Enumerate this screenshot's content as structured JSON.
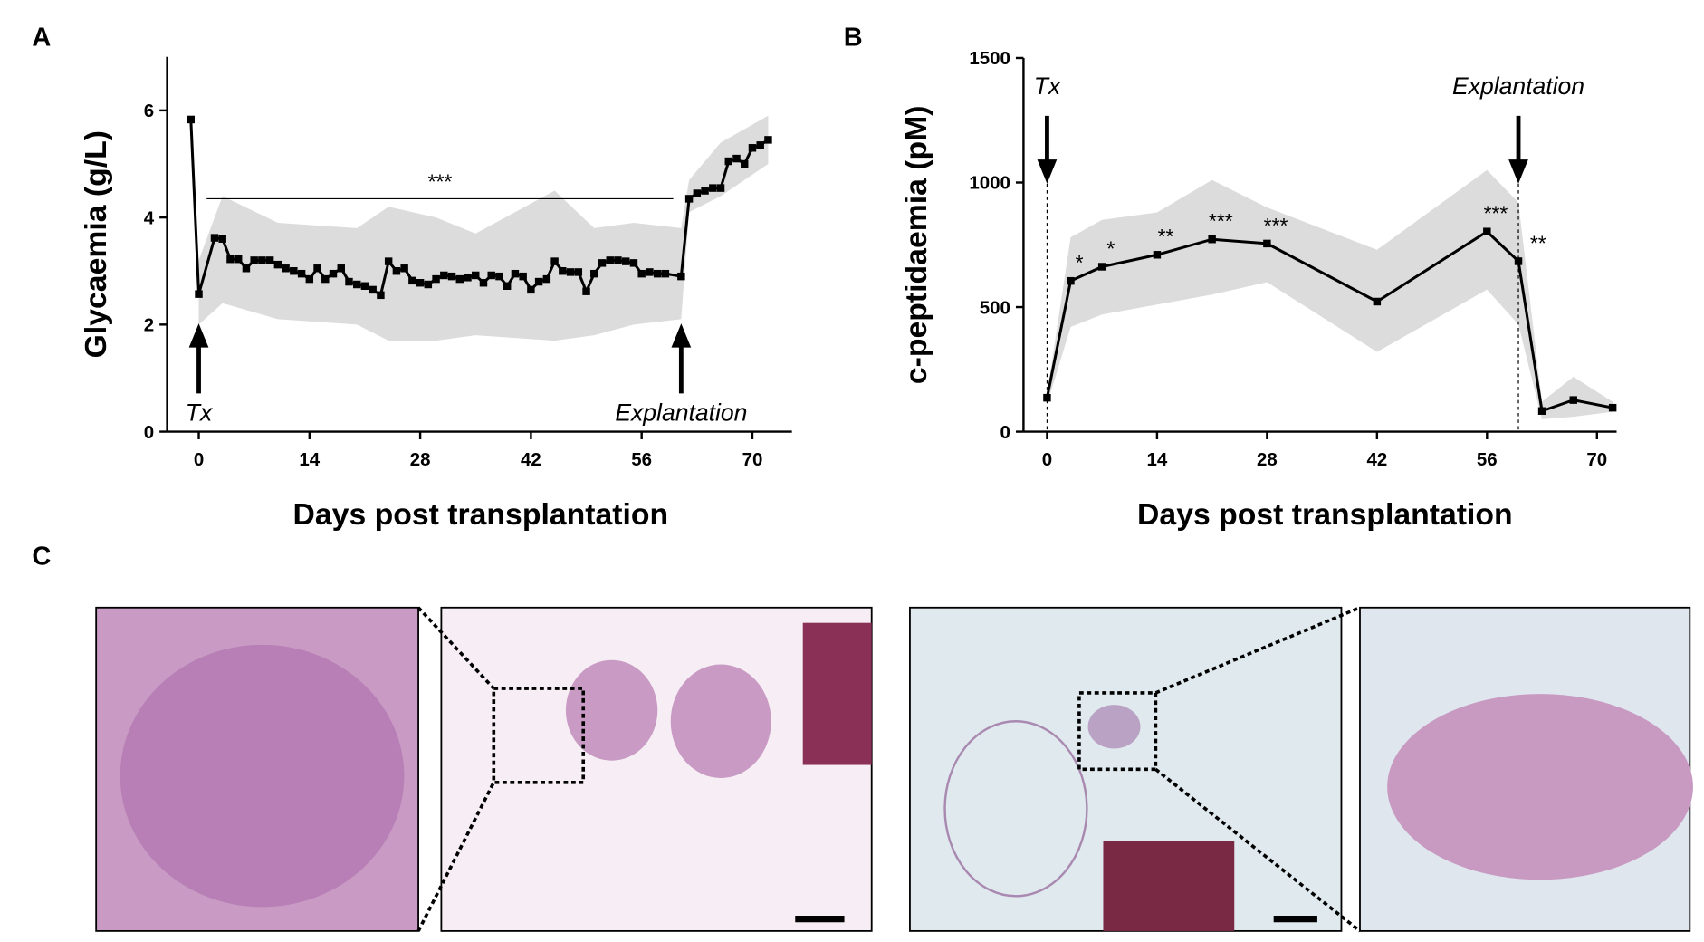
{
  "panels": [
    "A",
    "B",
    "C"
  ],
  "chart_data": [
    {
      "type": "line",
      "ylabel": "Glycaemia (g/L)",
      "xlabel": "Days post transplantation",
      "x": [
        -1,
        0,
        2,
        3,
        4,
        5,
        6,
        7,
        8,
        9,
        10,
        11,
        12,
        13,
        14,
        15,
        16,
        17,
        18,
        19,
        20,
        21,
        22,
        23,
        24,
        25,
        26,
        27,
        28,
        29,
        30,
        31,
        32,
        33,
        34,
        35,
        36,
        37,
        38,
        39,
        40,
        41,
        42,
        43,
        44,
        45,
        46,
        47,
        48,
        49,
        50,
        51,
        52,
        53,
        54,
        55,
        56,
        57,
        58,
        59,
        61,
        62,
        63,
        64,
        65,
        66,
        67,
        68,
        69,
        70,
        71,
        72
      ],
      "series": [
        {
          "color": "#000000",
          "values": [
            5.83,
            2.57,
            3.62,
            3.6,
            3.22,
            3.22,
            3.05,
            3.2,
            3.2,
            3.2,
            3.12,
            3.05,
            3.0,
            2.95,
            2.85,
            3.05,
            2.85,
            2.95,
            3.05,
            2.8,
            2.75,
            2.72,
            2.65,
            2.55,
            3.18,
            3.0,
            3.05,
            2.82,
            2.78,
            2.75,
            2.85,
            2.92,
            2.9,
            2.85,
            2.88,
            2.92,
            2.78,
            2.92,
            2.9,
            2.72,
            2.95,
            2.9,
            2.65,
            2.8,
            2.85,
            3.18,
            3.0,
            2.98,
            2.98,
            2.62,
            2.95,
            3.15,
            3.2,
            3.2,
            3.18,
            3.15,
            2.95,
            2.98,
            2.95,
            2.95,
            2.9,
            4.35,
            4.45,
            4.5,
            4.55,
            4.55,
            5.05,
            5.1,
            5.0,
            5.3,
            5.35,
            5.45
          ]
        }
      ],
      "band": {
        "color": "#dcdcdc",
        "x": [
          0,
          3,
          10,
          20,
          24,
          30,
          35,
          45,
          50,
          55,
          61,
          62,
          66,
          72
        ],
        "upper": [
          3.2,
          4.4,
          3.9,
          3.8,
          4.2,
          4.0,
          3.7,
          4.5,
          3.8,
          3.9,
          3.8,
          4.7,
          5.4,
          5.9
        ],
        "lower": [
          2.0,
          2.4,
          2.1,
          2.0,
          1.7,
          1.7,
          1.8,
          1.7,
          1.8,
          2.0,
          2.1,
          4.1,
          4.4,
          5.0
        ]
      },
      "significance_bracket": {
        "label": "***",
        "x": [
          1,
          60
        ],
        "y": 4.35
      },
      "arrows": [
        {
          "label": "Tx",
          "x": 0
        },
        {
          "label": "Explantation",
          "x": 61
        }
      ],
      "arrow_direction": "up",
      "guide_lines": false,
      "xlim": [
        -4,
        75
      ],
      "xticks": [
        0,
        14,
        28,
        42,
        56,
        70
      ],
      "ylim": [
        0,
        7
      ],
      "yticks": [
        0,
        2,
        4,
        6
      ]
    },
    {
      "type": "line",
      "ylabel": "c-peptidaemia (pM)",
      "xlabel": "Days post transplantation",
      "x": [
        0,
        3,
        7,
        14,
        21,
        28,
        42,
        56,
        60,
        63,
        67,
        72
      ],
      "series": [
        {
          "color": "#000000",
          "values": [
            136,
            605,
            662,
            710,
            772,
            755,
            522,
            803,
            684,
            83,
            127,
            96
          ]
        }
      ],
      "significance": [
        null,
        "*",
        "*",
        "**",
        "***",
        "***",
        null,
        "***",
        "**",
        null,
        null,
        null
      ],
      "band": {
        "color": "#dcdcdc",
        "x": [
          0,
          3,
          7,
          14,
          21,
          28,
          42,
          56,
          60,
          63,
          67,
          72
        ],
        "upper": [
          150,
          780,
          850,
          880,
          1010,
          900,
          730,
          1050,
          920,
          120,
          220,
          120
        ],
        "lower": [
          110,
          420,
          470,
          510,
          550,
          600,
          320,
          570,
          430,
          50,
          60,
          80
        ]
      },
      "arrows": [
        {
          "label": "Tx",
          "x": 0
        },
        {
          "label": "Explantation",
          "x": 60
        }
      ],
      "arrow_direction": "down",
      "guide_lines": true,
      "xlim": [
        -3,
        72.5
      ],
      "xticks": [
        0,
        14,
        28,
        42,
        56,
        70
      ],
      "ylim": [
        0,
        1500
      ],
      "yticks": [
        0,
        500,
        1000,
        1500
      ]
    }
  ]
}
